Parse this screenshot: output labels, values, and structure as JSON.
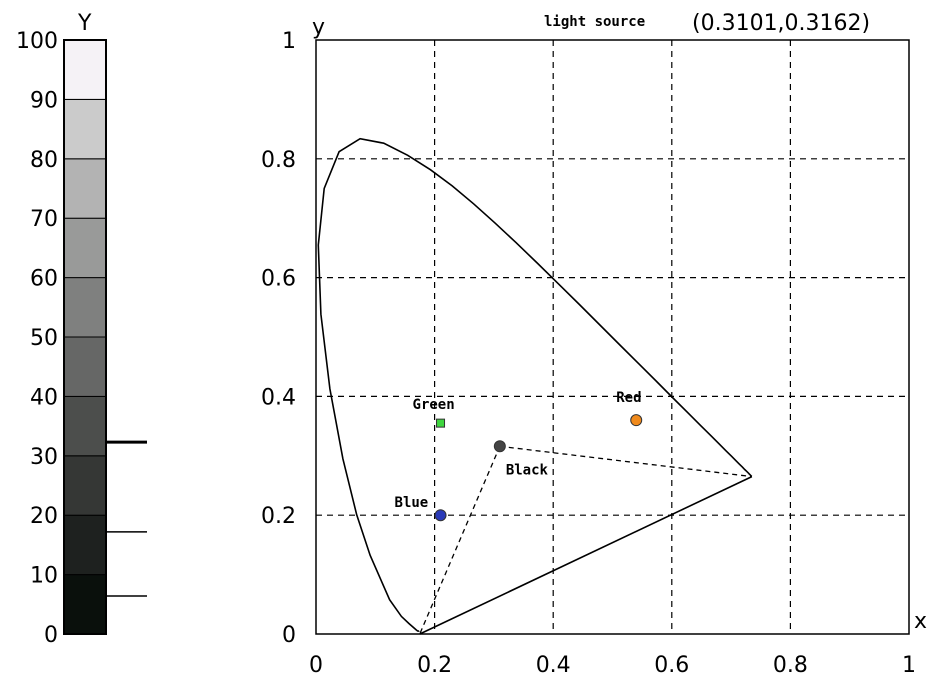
{
  "chart_data": [
    {
      "type": "bar",
      "ylabel": "Y",
      "ylim": [
        0,
        100
      ],
      "yticks": [
        "0",
        "10",
        "20",
        "30",
        "40",
        "50",
        "60",
        "70",
        "80",
        "90",
        "100"
      ],
      "swatch_colors": [
        "#0a100c",
        "#1e211f",
        "#353735",
        "#4c4e4c",
        "#666766",
        "#7f807f",
        "#999a99",
        "#b3b3b3",
        "#cbcbcb",
        "#e2e1e3",
        "#f5f2f6"
      ],
      "markers": [
        {
          "name": "marker-32",
          "y": 32.3
        },
        {
          "name": "marker-17",
          "y": 17.2
        },
        {
          "name": "marker-6",
          "y": 6.4
        }
      ]
    },
    {
      "type": "scatter",
      "xlabel": "x",
      "ylabel": "y",
      "xlim": [
        0,
        1
      ],
      "ylim": [
        0,
        1
      ],
      "xticks": [
        "0",
        "0.2",
        "0.4",
        "0.6",
        "0.8",
        "1"
      ],
      "yticks": [
        "0",
        "0.2",
        "0.4",
        "0.6",
        "0.8",
        "1"
      ],
      "grid": true,
      "light_source": {
        "label": "light source",
        "value": "(0.3101,0.3162)"
      },
      "points": [
        {
          "name": "Green",
          "label": "Green",
          "x": 0.21,
          "y": 0.355,
          "color": "#3fd63f"
        },
        {
          "name": "Red",
          "label": "Red",
          "x": 0.54,
          "y": 0.36,
          "color": "#f08a1c"
        },
        {
          "name": "Blue",
          "label": "Blue",
          "x": 0.21,
          "y": 0.2,
          "color": "#2a3ab8"
        },
        {
          "name": "Black",
          "label": "Black",
          "x": 0.31,
          "y": 0.316,
          "color": "#444444"
        }
      ],
      "triangle": [
        [
          0.175,
          0.0
        ],
        [
          0.735,
          0.265
        ],
        [
          0.31,
          0.316
        ]
      ],
      "gamut_solid": [
        [
          0.175,
          0.0
        ],
        [
          0.735,
          0.265
        ]
      ],
      "locus": [
        [
          0.1741,
          0.005
        ],
        [
          0.174,
          0.005
        ],
        [
          0.1738,
          0.0049
        ],
        [
          0.1736,
          0.0049
        ],
        [
          0.1733,
          0.0048
        ],
        [
          0.1726,
          0.0048
        ],
        [
          0.1714,
          0.0051
        ],
        [
          0.1689,
          0.0069
        ],
        [
          0.1644,
          0.0109
        ],
        [
          0.1566,
          0.0177
        ],
        [
          0.144,
          0.0297
        ],
        [
          0.1241,
          0.0578
        ],
        [
          0.0913,
          0.1327
        ],
        [
          0.0687,
          0.2007
        ],
        [
          0.0454,
          0.295
        ],
        [
          0.0235,
          0.4127
        ],
        [
          0.0082,
          0.5384
        ],
        [
          0.0039,
          0.6548
        ],
        [
          0.0139,
          0.7502
        ],
        [
          0.0389,
          0.812
        ],
        [
          0.0743,
          0.8338
        ],
        [
          0.1142,
          0.8262
        ],
        [
          0.1547,
          0.8059
        ],
        [
          0.1929,
          0.7816
        ],
        [
          0.2296,
          0.7543
        ],
        [
          0.2658,
          0.7243
        ],
        [
          0.3016,
          0.6923
        ],
        [
          0.3373,
          0.6589
        ],
        [
          0.3731,
          0.6245
        ],
        [
          0.4087,
          0.5896
        ],
        [
          0.4441,
          0.5547
        ],
        [
          0.4788,
          0.5202
        ],
        [
          0.5125,
          0.4866
        ],
        [
          0.5448,
          0.4544
        ],
        [
          0.5752,
          0.4242
        ],
        [
          0.6029,
          0.3965
        ],
        [
          0.627,
          0.3725
        ],
        [
          0.6482,
          0.3514
        ],
        [
          0.6658,
          0.334
        ],
        [
          0.6801,
          0.3197
        ],
        [
          0.6915,
          0.3083
        ],
        [
          0.7006,
          0.2993
        ],
        [
          0.7079,
          0.292
        ],
        [
          0.714,
          0.2859
        ],
        [
          0.719,
          0.2809
        ],
        [
          0.723,
          0.277
        ],
        [
          0.726,
          0.274
        ],
        [
          0.7283,
          0.2717
        ],
        [
          0.73,
          0.27
        ],
        [
          0.7311,
          0.2689
        ],
        [
          0.732,
          0.268
        ],
        [
          0.7347,
          0.2653
        ]
      ]
    }
  ]
}
